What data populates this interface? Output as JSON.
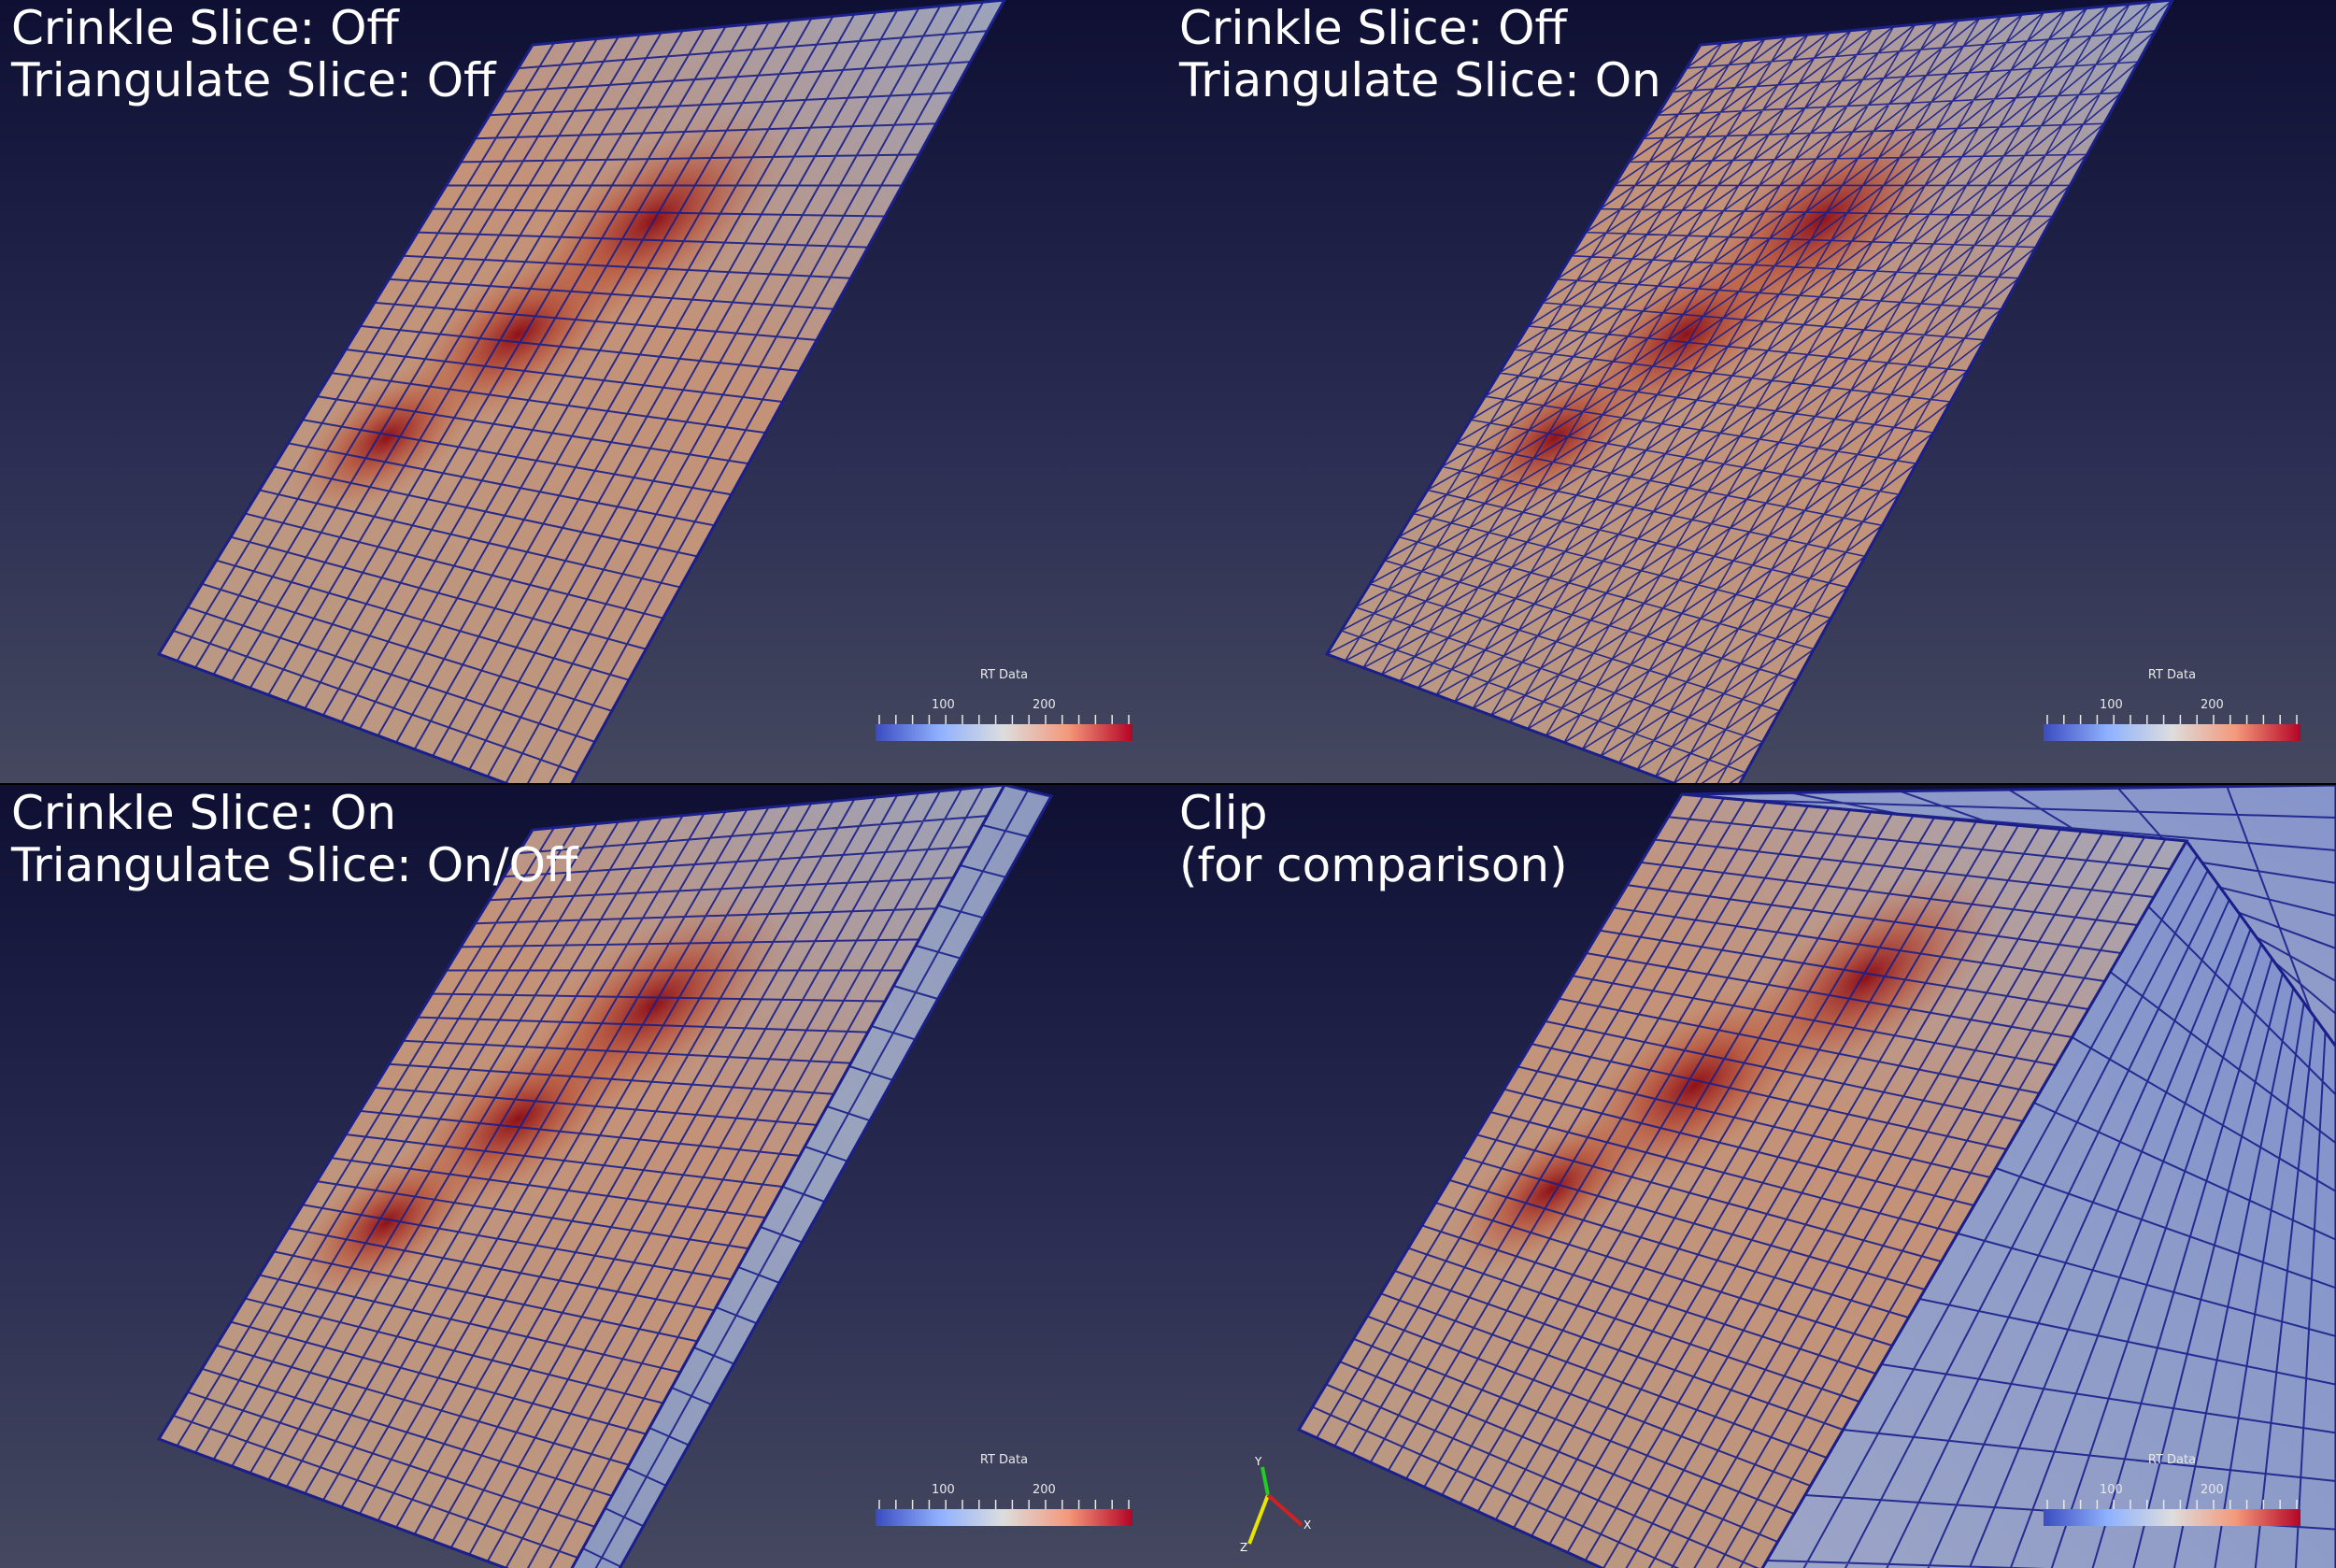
{
  "views": [
    {
      "caption_line1": "Crinkle Slice: Off",
      "caption_line2": "Triangulate Slice: Off"
    },
    {
      "caption_line1": "Crinkle Slice: Off",
      "caption_line2": "Triangulate Slice: On"
    },
    {
      "caption_line1": "Crinkle Slice: On",
      "caption_line2": "Triangulate Slice: On/Off"
    },
    {
      "caption_line1": "Clip",
      "caption_line2": "(for comparison)"
    }
  ],
  "colorbar": {
    "title": "RT Data",
    "label_low": "100",
    "label_high": "200",
    "colors": [
      "#3b4cc0",
      "#dddddd",
      "#b40426"
    ]
  },
  "mesh_color": "#1a1f8a",
  "axes_labels": {
    "x": "X",
    "y": "Y",
    "z": "Z"
  }
}
